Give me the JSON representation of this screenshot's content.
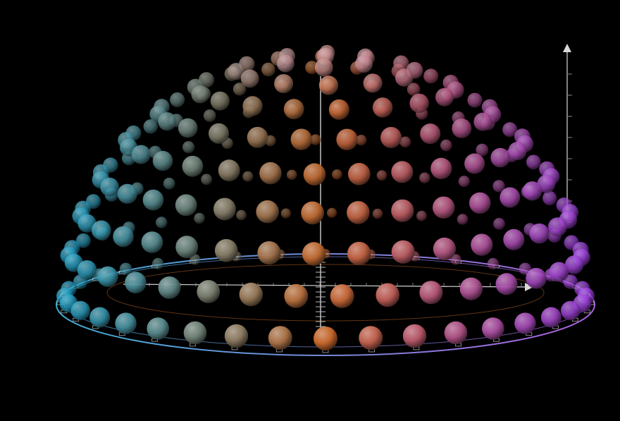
{
  "chart_data": {
    "type": "scatter",
    "subtype": "3d-hemisphere-sphere-scatter",
    "title": "",
    "xlabel": "",
    "ylabel": "",
    "zlabel": "",
    "background": "#000000",
    "grid": false,
    "legend": "none",
    "description_values": {
      "latitude_rows_deg": [
        0,
        10,
        20,
        30,
        40,
        50,
        60,
        70,
        80,
        90
      ],
      "longitude_step_deg": 10,
      "radius": 1.0
    },
    "color_scale": {
      "start": "#1f9ec4",
      "middle": "#c2652a",
      "end": "#9b3fe0",
      "apex": "#c9a9d9"
    },
    "axes": {
      "x_arrow_color": "#d9d9d9",
      "z_arrow_color": "#d9d9d9",
      "ring_color_left": "#3fb0d6",
      "ring_color_right": "#b060e0",
      "ring_inner_color": "#c2652a"
    }
  }
}
